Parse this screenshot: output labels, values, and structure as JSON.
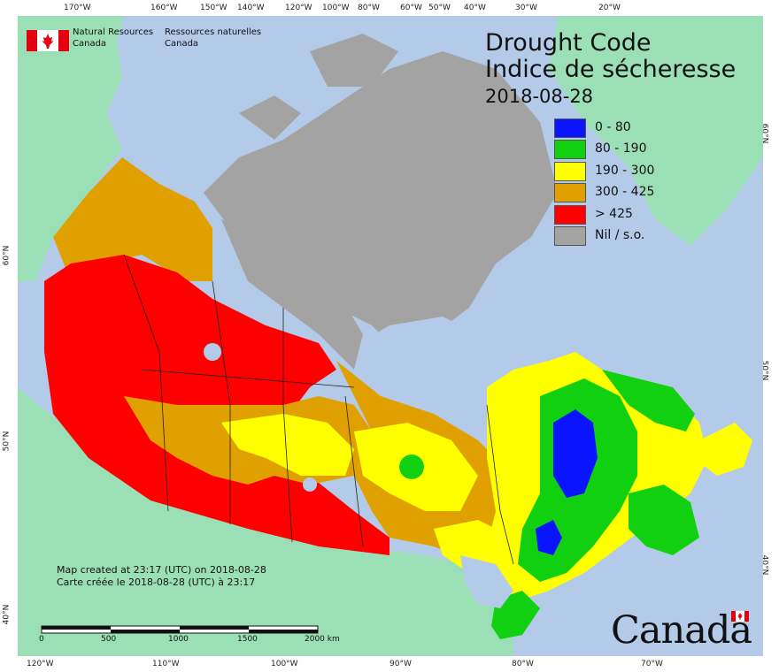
{
  "title": {
    "en": "Drought Code",
    "fr": "Indice de sécheresse",
    "date": "2018-08-28"
  },
  "legend": [
    {
      "label": "0 - 80",
      "color": "#0a14ff"
    },
    {
      "label": "80 - 190",
      "color": "#10d010"
    },
    {
      "label": "190 - 300",
      "color": "#ffff00"
    },
    {
      "label": "300 - 425",
      "color": "#e0a000"
    },
    {
      "label": "> 425",
      "color": "#ff0000"
    },
    {
      "label": "Nil / s.o.",
      "color": "#a3a3a3"
    }
  ],
  "agency": {
    "en_line1": "Natural Resources",
    "en_line2": "Canada",
    "fr_line1": "Ressources naturelles",
    "fr_line2": "Canada"
  },
  "credits": {
    "en": "Map created at 23:17 (UTC) on 2018-08-28",
    "fr": "Carte créée le 2018-08-28 (UTC) à 23:17"
  },
  "scale": {
    "labels": [
      "0",
      "500",
      "1000",
      "1500",
      "2000  km"
    ]
  },
  "wordmark": "Canada",
  "graticule": {
    "top": [
      "170°W",
      "160°W",
      "150°W",
      "140°W",
      "120°W",
      "100°W",
      "80°W",
      "60°W",
      "50°W",
      "40°W",
      "30°W",
      "20°W"
    ],
    "bottom": [
      "120°W",
      "110°W",
      "100°W",
      "90°W",
      "80°W",
      "70°W"
    ],
    "left": [
      "60°N",
      "50°N",
      "40°N"
    ],
    "right": [
      "60°N",
      "50°N",
      "40°N"
    ]
  },
  "colors": {
    "ocean": "#b3cbe9",
    "land_no_data": "#9bdfb6",
    "nil": "#a3a3a3",
    "flag_red": "#e3000f"
  }
}
